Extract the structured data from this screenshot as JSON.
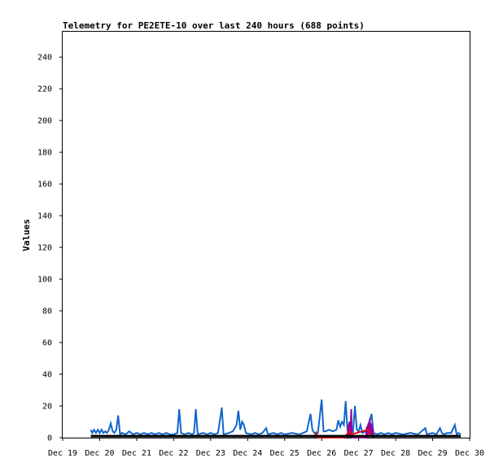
{
  "chart_data": {
    "type": "line",
    "title": "Telemetry for PE2ETE-10 over last 240 hours (688 points)",
    "xlabel": "",
    "ylabel": "Values",
    "ylim": [
      0,
      256
    ],
    "yticks": [
      0,
      20,
      40,
      60,
      80,
      100,
      120,
      140,
      160,
      180,
      200,
      220,
      240
    ],
    "xlim": [
      "Dec 19",
      "Dec 30"
    ],
    "xticks": [
      "Dec 19",
      "Dec 20",
      "Dec 21",
      "Dec 22",
      "Dec 23",
      "Dec 24",
      "Dec 25",
      "Dec 26",
      "Dec 27",
      "Dec 28",
      "Dec 29",
      "Dec 30"
    ],
    "grid": false,
    "legend": "none",
    "series": [
      {
        "color": "#1166cc",
        "points": [
          [
            19.76,
            5
          ],
          [
            19.8,
            3
          ],
          [
            19.85,
            5
          ],
          [
            19.9,
            3
          ],
          [
            19.95,
            5
          ],
          [
            20.0,
            3
          ],
          [
            20.05,
            5
          ],
          [
            20.1,
            3
          ],
          [
            20.15,
            4
          ],
          [
            20.2,
            3
          ],
          [
            20.25,
            5
          ],
          [
            20.3,
            9
          ],
          [
            20.35,
            4
          ],
          [
            20.4,
            3
          ],
          [
            20.45,
            5
          ],
          [
            20.5,
            14
          ],
          [
            20.55,
            2
          ],
          [
            20.6,
            3
          ],
          [
            20.7,
            2
          ],
          [
            20.8,
            4
          ],
          [
            20.9,
            2
          ],
          [
            21.0,
            3
          ],
          [
            21.1,
            2
          ],
          [
            21.2,
            3
          ],
          [
            21.3,
            2
          ],
          [
            21.4,
            3
          ],
          [
            21.5,
            2
          ],
          [
            21.6,
            3
          ],
          [
            21.7,
            2
          ],
          [
            21.8,
            3
          ],
          [
            21.9,
            2
          ],
          [
            22.0,
            2
          ],
          [
            22.1,
            3
          ],
          [
            22.15,
            18
          ],
          [
            22.2,
            3
          ],
          [
            22.3,
            2
          ],
          [
            22.4,
            3
          ],
          [
            22.5,
            2
          ],
          [
            22.55,
            3
          ],
          [
            22.6,
            18
          ],
          [
            22.65,
            2
          ],
          [
            22.8,
            3
          ],
          [
            22.9,
            2
          ],
          [
            23.0,
            3
          ],
          [
            23.1,
            2
          ],
          [
            23.2,
            3
          ],
          [
            23.3,
            19
          ],
          [
            23.35,
            2
          ],
          [
            23.5,
            3
          ],
          [
            23.6,
            4
          ],
          [
            23.7,
            8
          ],
          [
            23.75,
            17
          ],
          [
            23.8,
            5
          ],
          [
            23.85,
            10
          ],
          [
            23.9,
            8
          ],
          [
            23.95,
            3
          ],
          [
            24.1,
            2
          ],
          [
            24.2,
            3
          ],
          [
            24.3,
            2
          ],
          [
            24.4,
            3
          ],
          [
            24.5,
            6
          ],
          [
            24.55,
            2
          ],
          [
            24.7,
            3
          ],
          [
            24.8,
            2
          ],
          [
            24.9,
            3
          ],
          [
            25.0,
            2
          ],
          [
            25.2,
            3
          ],
          [
            25.4,
            2
          ],
          [
            25.6,
            4
          ],
          [
            25.7,
            15
          ],
          [
            25.75,
            5
          ],
          [
            25.8,
            3
          ],
          [
            25.9,
            3
          ],
          [
            26.0,
            24
          ],
          [
            26.05,
            4
          ],
          [
            26.1,
            4
          ],
          [
            26.2,
            5
          ],
          [
            26.3,
            4
          ],
          [
            26.4,
            5
          ],
          [
            26.45,
            11
          ],
          [
            26.5,
            7
          ],
          [
            26.55,
            10
          ],
          [
            26.6,
            8
          ],
          [
            26.65,
            23
          ],
          [
            26.7,
            4
          ],
          [
            26.75,
            10
          ],
          [
            26.8,
            6
          ],
          [
            26.85,
            4
          ],
          [
            26.9,
            20
          ],
          [
            26.95,
            5
          ],
          [
            27.0,
            4
          ],
          [
            27.05,
            8
          ],
          [
            27.1,
            3
          ],
          [
            27.2,
            4
          ],
          [
            27.3,
            11
          ],
          [
            27.35,
            15
          ],
          [
            27.4,
            3
          ],
          [
            27.5,
            2
          ],
          [
            27.6,
            3
          ],
          [
            27.7,
            2
          ],
          [
            27.8,
            3
          ],
          [
            27.9,
            2
          ],
          [
            28.0,
            3
          ],
          [
            28.2,
            2
          ],
          [
            28.4,
            3
          ],
          [
            28.6,
            2
          ],
          [
            28.8,
            6
          ],
          [
            28.85,
            2
          ],
          [
            29.0,
            3
          ],
          [
            29.1,
            2
          ],
          [
            29.2,
            6
          ],
          [
            29.25,
            3
          ],
          [
            29.3,
            2
          ],
          [
            29.4,
            3
          ],
          [
            29.5,
            3
          ],
          [
            29.6,
            8
          ],
          [
            29.65,
            2
          ],
          [
            29.7,
            3
          ],
          [
            29.76,
            2
          ]
        ]
      },
      {
        "color": "#990099",
        "points": [
          [
            26.7,
            0
          ],
          [
            26.72,
            8
          ],
          [
            26.74,
            1
          ],
          [
            26.76,
            10
          ],
          [
            26.78,
            0
          ],
          [
            26.8,
            18
          ],
          [
            26.82,
            0
          ],
          [
            27.0,
            0
          ],
          [
            27.2,
            0
          ],
          [
            27.22,
            7
          ],
          [
            27.24,
            0
          ],
          [
            27.26,
            9
          ],
          [
            27.28,
            2
          ],
          [
            27.3,
            12
          ],
          [
            27.32,
            3
          ],
          [
            27.34,
            9
          ],
          [
            27.36,
            1
          ],
          [
            27.38,
            6
          ],
          [
            27.4,
            0
          ]
        ]
      },
      {
        "color": "#dd1111",
        "points": [
          [
            25.8,
            0
          ],
          [
            25.85,
            3
          ],
          [
            25.9,
            0
          ],
          [
            26.6,
            0
          ],
          [
            26.75,
            4
          ],
          [
            26.8,
            2
          ],
          [
            27.25,
            5
          ],
          [
            27.3,
            3
          ],
          [
            27.4,
            0
          ]
        ]
      },
      {
        "color": "#000000",
        "points": [
          [
            19.76,
            1
          ],
          [
            29.76,
            1
          ]
        ]
      }
    ]
  }
}
